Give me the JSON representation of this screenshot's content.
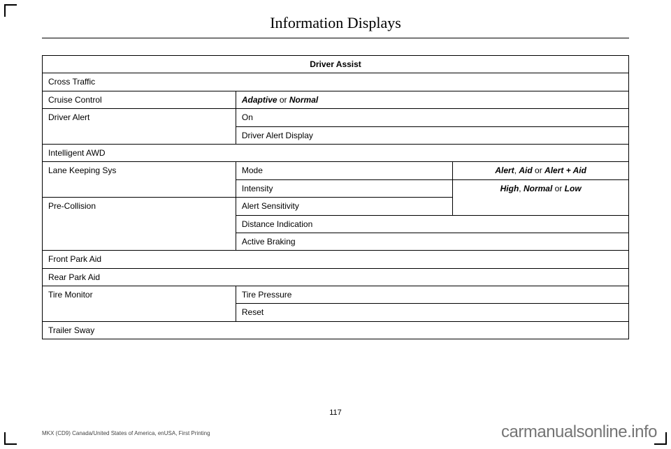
{
  "title": "Information Displays",
  "table": {
    "header": "Driver Assist",
    "rows": {
      "cross_traffic": "Cross Traffic",
      "cruise_control": {
        "label": "Cruise Control",
        "value_b1": "Adaptive",
        "or": " or ",
        "value_b2": "Normal"
      },
      "driver_alert": {
        "label": "Driver Alert",
        "on": "On",
        "display": "Driver Alert Display"
      },
      "intelligent_awd": "Intelligent AWD",
      "lane_keeping": {
        "label": "Lane Keeping Sys",
        "mode": {
          "label": "Mode",
          "opt1": "Alert",
          "sep1": ", ",
          "opt2": "Aid",
          "or": " or ",
          "opt3": "Alert + Aid"
        },
        "intensity": {
          "label": "Intensity",
          "opt1": "High",
          "sep1": ", ",
          "opt2": "Normal",
          "or": " or ",
          "opt3": "Low"
        }
      },
      "pre_collision": {
        "label": "Pre-Collision",
        "alert_sens": "Alert Sensitivity",
        "distance": "Distance Indication",
        "active_braking": "Active Braking"
      },
      "front_park": "Front Park Aid",
      "rear_park": "Rear Park Aid",
      "tire_monitor": {
        "label": "Tire Monitor",
        "pressure": "Tire Pressure",
        "reset": "Reset"
      },
      "trailer_sway": "Trailer Sway"
    }
  },
  "pagenum": "117",
  "footnote": "MKX (CD9) Canada/United States of America, enUSA, First Printing",
  "watermark": "carmanualsonline.info"
}
